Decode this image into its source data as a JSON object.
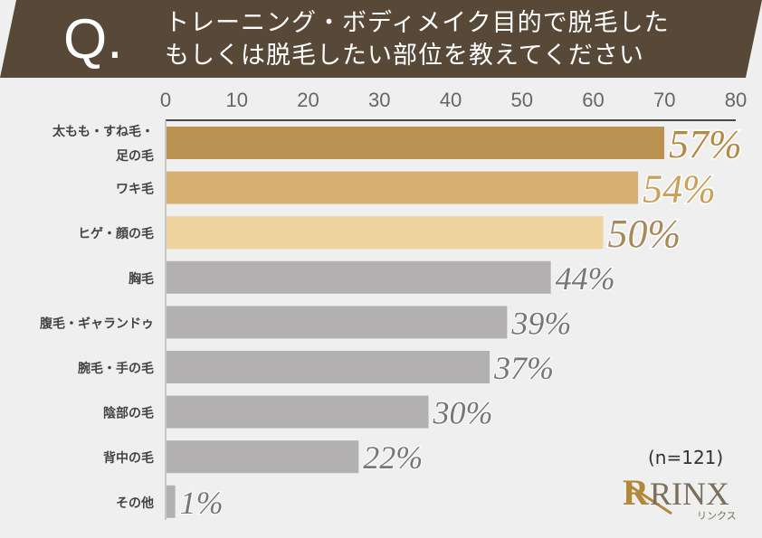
{
  "header": {
    "q_mark": "Q.",
    "title_line1": "トレーニング・ボディメイク目的で脱毛した",
    "title_line2": "もしくは脱毛したい部位を教えてください",
    "background": "#574837"
  },
  "sample_note": "(n=121)",
  "logo": {
    "text": "RINX",
    "subtext": "リンクス",
    "color": "#b08a3a"
  },
  "chart_data": {
    "type": "bar",
    "orientation": "horizontal",
    "xlim": [
      0,
      80
    ],
    "xticks": [
      0,
      10,
      20,
      30,
      40,
      50,
      60,
      70,
      80
    ],
    "categories": [
      "太もも・すね毛・\n足の毛",
      "ワキ毛",
      "ヒゲ・顔の毛",
      "胸毛",
      "腹毛・ギャランドゥ",
      "腕毛・手の毛",
      "陰部の毛",
      "背中の毛",
      "その他"
    ],
    "values": [
      57,
      54,
      50,
      44,
      39,
      37,
      30,
      22,
      1
    ],
    "labels": [
      "57%",
      "54%",
      "50%",
      "44%",
      "39%",
      "37%",
      "30%",
      "22%",
      "1%"
    ],
    "bar_colors": [
      "#b99150",
      "#d6b073",
      "#efd39f",
      "#b2b0b0",
      "#b2b0b0",
      "#b2b0b0",
      "#b2b0b0",
      "#b2b0b0",
      "#b2b0b0"
    ],
    "label_colors": [
      "#b48a45",
      "#c9a05c",
      "#a8895a",
      "#777777",
      "#777777",
      "#777777",
      "#777777",
      "#777777",
      "#777777"
    ]
  }
}
